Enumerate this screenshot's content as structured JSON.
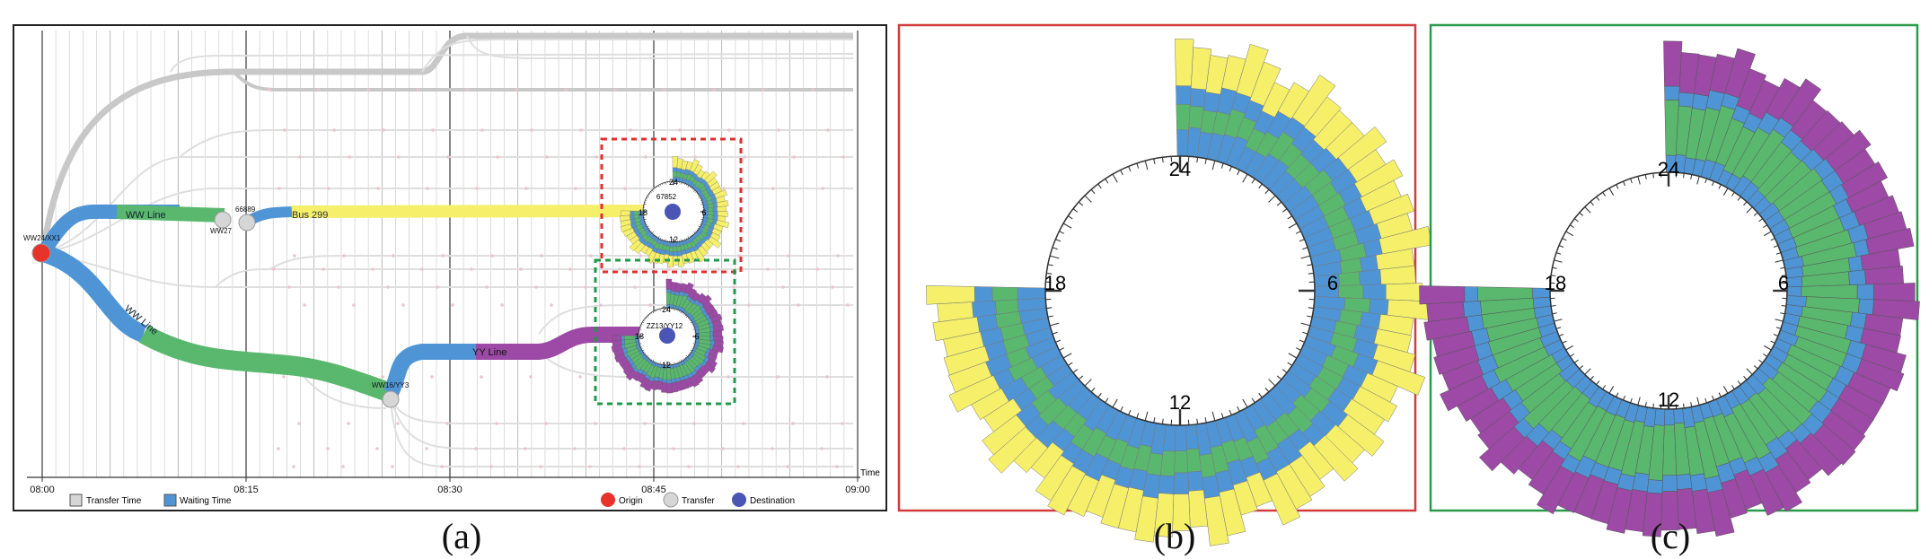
{
  "panel_a": {
    "time_axis": {
      "ticks": [
        "08:00",
        "08:15",
        "08:30",
        "08:45",
        "09:00"
      ],
      "label": "Time"
    },
    "nodes": {
      "origin": "WW24/XX1",
      "transfer_ww27": "WW27",
      "transfer_66889": "66889",
      "transfer_ww16": "WW16/YY3"
    },
    "routes": {
      "ww_line_top": "WW Line",
      "bus_299": "Bus 299",
      "ww_line_bottom": "WW Line",
      "yy_line": "YY Line"
    },
    "clock_top": {
      "id": "67852",
      "h24": "24",
      "h6": "6",
      "h12": "12",
      "h18": "18"
    },
    "clock_bottom": {
      "id": "ZZ13/YY12",
      "h24": "24",
      "h6": "6",
      "h12": "12",
      "h18": "18"
    },
    "legend": {
      "transfer_time": "Transfer Time",
      "waiting_time": "Waiting Time",
      "origin": "Origin",
      "transfer": "Transfer",
      "destination": "Destination"
    }
  },
  "panel_b": {
    "h24": "24",
    "h6": "6",
    "h12": "12",
    "h18": "18"
  },
  "panel_c": {
    "h24": "24",
    "h6": "6",
    "h12": "12",
    "h18": "18"
  },
  "captions": {
    "a": "(a)",
    "b": "(b)",
    "c": "(c)"
  },
  "colors": {
    "origin": "#e8322c",
    "transfer": "#d6d6d6",
    "destination": "#4a55b5",
    "waiting": "#4f95d6",
    "ww_line": "#59b86e",
    "bus": "#f5ef6a",
    "yy_line": "#9c4aa5",
    "frame_b": "#d33c3c",
    "frame_c": "#2a9a4a",
    "dash_top": "#e03030",
    "dash_bottom": "#1f9a48"
  }
}
